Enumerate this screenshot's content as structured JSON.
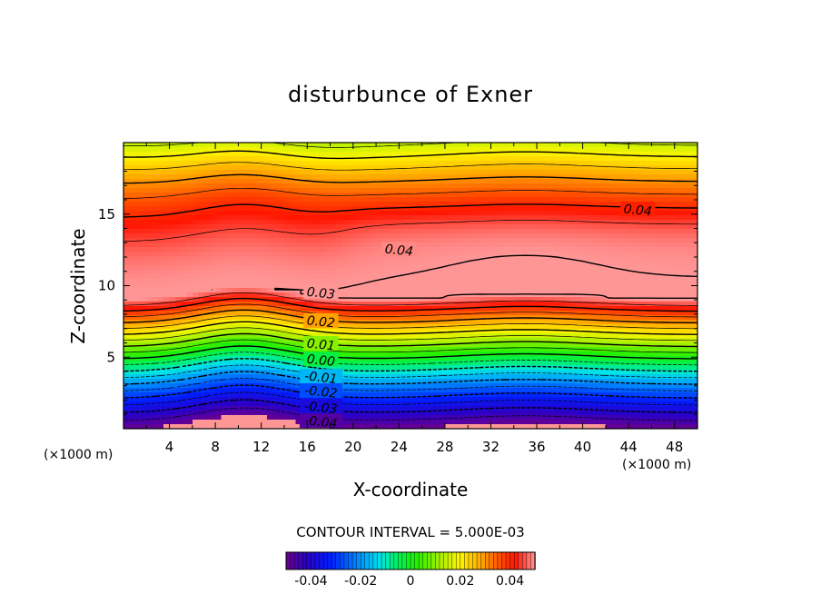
{
  "chart_data": {
    "type": "heatmap",
    "subtype": "filled-contour",
    "title": "disturbunce of Exner",
    "xlabel": "X-coordinate",
    "ylabel": "Z-coordinate",
    "x_unit_label": "(×1000 m)",
    "y_unit_label": "(×1000 m)",
    "xlim": [
      0,
      50
    ],
    "ylim": [
      0,
      20
    ],
    "x_ticks": [
      4,
      8,
      12,
      16,
      20,
      24,
      28,
      32,
      36,
      40,
      44,
      48
    ],
    "y_ticks": [
      5,
      10,
      15
    ],
    "contour_interval_text": "CONTOUR INTERVAL = 5.000E-03",
    "value_range": [
      -0.05,
      0.05
    ],
    "contour_labels": [
      {
        "text": "0.04",
        "x": 44.8,
        "z": 15.3
      },
      {
        "text": "0.04",
        "x": 24.0,
        "z": 12.5
      },
      {
        "text": "0.03",
        "x": 17.2,
        "z": 9.5
      },
      {
        "text": "0.02",
        "x": 17.2,
        "z": 7.5
      },
      {
        "text": "0.01",
        "x": 17.2,
        "z": 5.9
      },
      {
        "text": "0.00",
        "x": 17.2,
        "z": 4.8
      },
      {
        "text": "-0.01",
        "x": 17.2,
        "z": 3.6
      },
      {
        "text": "-0.02",
        "x": 17.2,
        "z": 2.6
      },
      {
        "text": "-0.03",
        "x": 17.2,
        "z": 1.5
      },
      {
        "text": "-0.04",
        "x": 17.2,
        "z": 0.5
      }
    ],
    "colorbar": {
      "ticks": [
        {
          "label": "-0.04",
          "value": -0.04
        },
        {
          "label": "-0.02",
          "value": -0.02
        },
        {
          "label": "0",
          "value": 0
        },
        {
          "label": "0.02",
          "value": 0.02
        },
        {
          "label": "0.04",
          "value": 0.04
        }
      ]
    }
  }
}
